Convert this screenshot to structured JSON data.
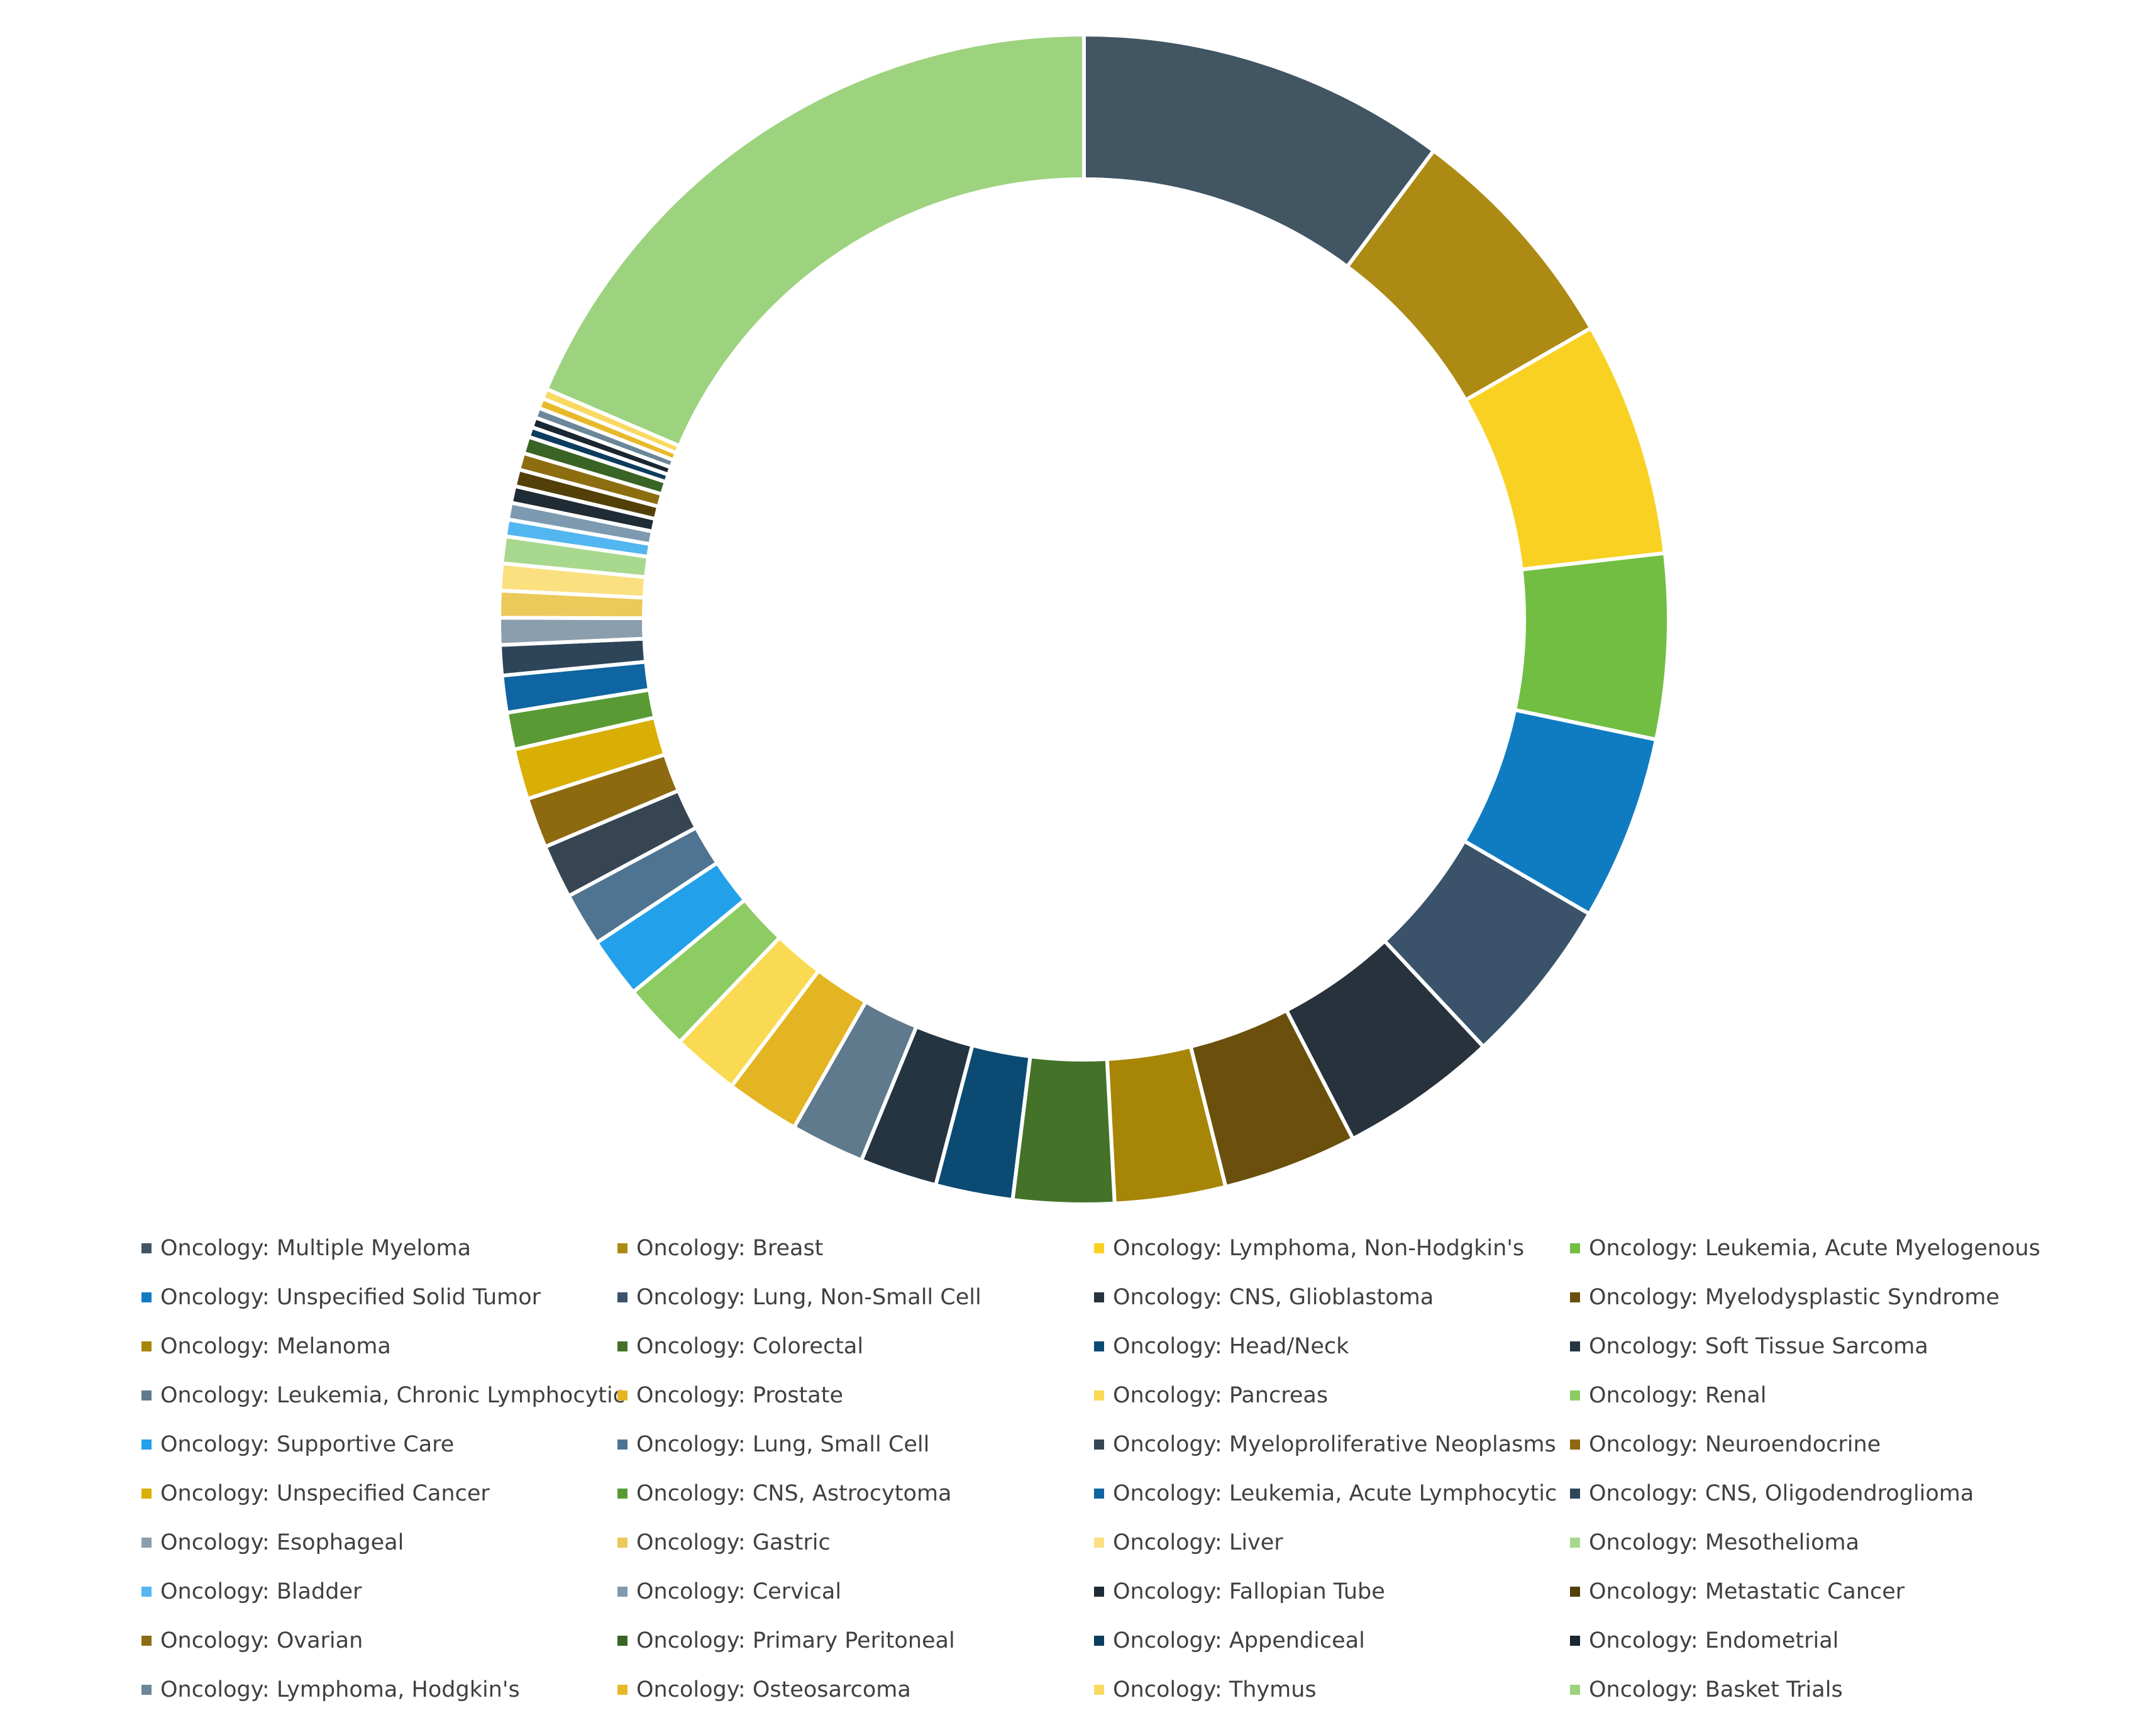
{
  "chart_data": {
    "type": "pie",
    "variant": "doughnut",
    "title": "",
    "legend_position": "bottom",
    "slices": [
      {
        "label": "Oncology: Multiple Myeloma",
        "value": 11.0,
        "color": "#415563"
      },
      {
        "label": "Oncology: Breast",
        "value": 7.0,
        "color": "#AD8A14"
      },
      {
        "label": "Oncology: Lymphoma, Non-Hodgkin's",
        "value": 7.0,
        "color": "#F9D123"
      },
      {
        "label": "Oncology: Leukemia, Acute Myelogenous",
        "value": 5.5,
        "color": "#71BE42"
      },
      {
        "label": "Oncology: Unspecified Solid Tumor",
        "value": 5.5,
        "color": "#0F7CC2"
      },
      {
        "label": "Oncology: Lung, Non-Small Cell",
        "value": 5.0,
        "color": "#3A536A"
      },
      {
        "label": "Oncology: CNS, Glioblastoma",
        "value": 4.7,
        "color": "#27323C"
      },
      {
        "label": "Oncology: Myelodysplastic Syndrome",
        "value": 4.0,
        "color": "#6A500C"
      },
      {
        "label": "Oncology: Melanoma",
        "value": 3.3,
        "color": "#A78506"
      },
      {
        "label": "Oncology: Colorectal",
        "value": 3.0,
        "color": "#437228"
      },
      {
        "label": "Oncology: Head/Neck",
        "value": 2.3,
        "color": "#0B4A73"
      },
      {
        "label": "Oncology: Soft Tissue Sarcoma",
        "value": 2.3,
        "color": "#243441"
      },
      {
        "label": "Oncology: Leukemia, Chronic Lymphocytic",
        "value": 2.2,
        "color": "#5F7A8C"
      },
      {
        "label": "Oncology: Prostate",
        "value": 2.2,
        "color": "#E4B523"
      },
      {
        "label": "Oncology: Pancreas",
        "value": 2.0,
        "color": "#FADA52"
      },
      {
        "label": "Oncology: Renal",
        "value": 2.0,
        "color": "#8DCB63"
      },
      {
        "label": "Oncology: Supportive Care",
        "value": 1.8,
        "color": "#22A0EA"
      },
      {
        "label": "Oncology: Lung, Small Cell",
        "value": 1.6,
        "color": "#4F7491"
      },
      {
        "label": "Oncology: Myeloproliferative Neoplasms",
        "value": 1.6,
        "color": "#364551"
      },
      {
        "label": "Oncology: Neuroendocrine",
        "value": 1.5,
        "color": "#8D6910"
      },
      {
        "label": "Oncology: Unspecified Cancer",
        "value": 1.5,
        "color": "#D9AF06"
      },
      {
        "label": "Oncology: CNS, Astrocytoma",
        "value": 1.1,
        "color": "#5A9A35"
      },
      {
        "label": "Oncology: Leukemia, Acute Lymphocytic",
        "value": 1.1,
        "color": "#0E65A1"
      },
      {
        "label": "Oncology: CNS, Oligodendroglioma",
        "value": 0.9,
        "color": "#2E4559"
      },
      {
        "label": "Oncology: Esophageal",
        "value": 0.8,
        "color": "#8A9EAD"
      },
      {
        "label": "Oncology: Gastric",
        "value": 0.8,
        "color": "#EBC95A"
      },
      {
        "label": "Oncology: Liver",
        "value": 0.8,
        "color": "#FBE080"
      },
      {
        "label": "Oncology: Mesothelioma",
        "value": 0.8,
        "color": "#A8D88D"
      },
      {
        "label": "Oncology: Bladder",
        "value": 0.5,
        "color": "#52B6F0"
      },
      {
        "label": "Oncology: Cervical",
        "value": 0.5,
        "color": "#7D9AB0"
      },
      {
        "label": "Oncology: Fallopian Tube",
        "value": 0.5,
        "color": "#1F2B35"
      },
      {
        "label": "Oncology: Metastatic Cancer",
        "value": 0.5,
        "color": "#524008"
      },
      {
        "label": "Oncology: Ovarian",
        "value": 0.5,
        "color": "#8C6D10"
      },
      {
        "label": "Oncology: Primary Peritoneal",
        "value": 0.5,
        "color": "#3A6425"
      },
      {
        "label": "Oncology: Appendiceal",
        "value": 0.3,
        "color": "#0C3C5E"
      },
      {
        "label": "Oncology: Endometrial",
        "value": 0.3,
        "color": "#1A2630"
      },
      {
        "label": "Oncology: Lymphoma, Hodgkin's",
        "value": 0.3,
        "color": "#6B8799"
      },
      {
        "label": "Oncology: Osteosarcoma",
        "value": 0.3,
        "color": "#E7B92A"
      },
      {
        "label": "Oncology: Thymus",
        "value": 0.3,
        "color": "#FAD962"
      },
      {
        "label": "Oncology: Basket Trials",
        "value": 20.0,
        "color": "#9DD37F"
      }
    ]
  }
}
